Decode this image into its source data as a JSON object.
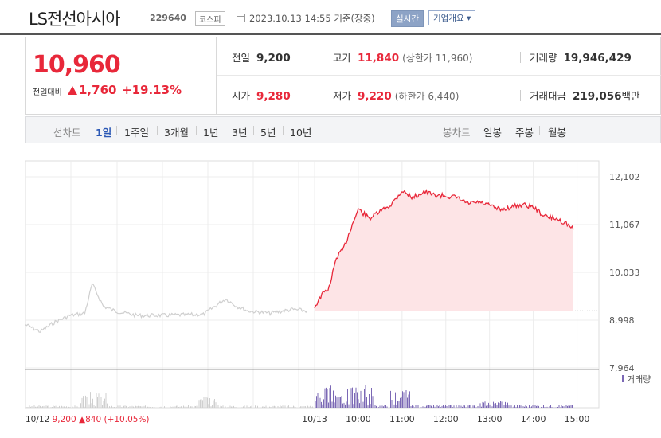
{
  "header": {
    "name": "LS전선아시아",
    "code": "229640",
    "market": "코스피",
    "datetime": "2023.10.13 14:55",
    "basis": "기준(장중)",
    "realtime_btn": "실시간",
    "company_btn": "기업개요 ▾"
  },
  "summary": {
    "price": "10,960",
    "change_label": "전일대비",
    "change": "1,760",
    "change_pct": "+19.13%",
    "prev_close_label": "전일",
    "prev_close": "9,200",
    "high_label": "고가",
    "high": "11,840",
    "upper_limit": "(상한가 11,960)",
    "volume_label": "거래량",
    "volume": "19,946,429",
    "open_label": "시가",
    "open": "9,280",
    "low_label": "저가",
    "low": "9,220",
    "lower_limit": "(하한가 6,440)",
    "value_label": "거래대금",
    "value": "219,056",
    "value_unit": "백만"
  },
  "periods": {
    "line_label": "선차트",
    "items": [
      "1일",
      "1주일",
      "3개월",
      "1년",
      "3년",
      "5년",
      "10년"
    ],
    "active": "1일",
    "candle_label": "봉차트",
    "candle_items": [
      "일봉",
      "주봉",
      "월봉"
    ]
  },
  "colors": {
    "up": "#e8283a",
    "area": "#fde4e6",
    "prev_line": "#cfcfcf",
    "vol_prev": "#cfcfcf",
    "vol_today": "#7b68b5",
    "grid": "#ececec"
  },
  "chart_data": {
    "type": "area",
    "y_ticks": [
      "12,102",
      "11,067",
      "10,033",
      "8,998",
      "7,964"
    ],
    "ylim": [
      7964,
      12102
    ],
    "x_ticks": [
      "10/13",
      "10:00",
      "11:00",
      "12:00",
      "13:00",
      "14:00",
      "15:00"
    ],
    "prev_day_label": "10/12",
    "prev_close": 9200,
    "series": [
      {
        "x": [
          "10/12 09:00",
          "10/12 09:20",
          "10/12 09:40",
          "10/12 10:00",
          "10/12 10:20",
          "10/12 10:30",
          "10/12 10:45",
          "10/12 11:00",
          "10/12 11:30",
          "10/12 12:00",
          "10/12 12:30",
          "10/12 13:00",
          "10/12 13:30",
          "10/12 13:45",
          "10/12 14:00",
          "10/12 14:30",
          "10/12 15:00",
          "10/12 15:20"
        ],
        "values": [
          8900,
          8750,
          8960,
          9100,
          9150,
          9780,
          9300,
          9200,
          9100,
          9100,
          9110,
          9120,
          9460,
          9300,
          9200,
          9150,
          9230,
          9200
        ]
      },
      {
        "x": [
          "10/13 09:00",
          "09:10",
          "09:20",
          "09:30",
          "09:40",
          "09:50",
          "10:00",
          "10:15",
          "10:30",
          "10:45",
          "11:00",
          "11:15",
          "11:30",
          "11:45",
          "12:00",
          "12:15",
          "12:30",
          "12:45",
          "13:00",
          "13:15",
          "13:30",
          "13:45",
          "14:00",
          "14:15",
          "14:30",
          "14:45",
          "14:55"
        ],
        "values": [
          9280,
          9550,
          9700,
          10350,
          10550,
          11000,
          11400,
          11200,
          11350,
          11500,
          11800,
          11650,
          11780,
          11700,
          11690,
          11650,
          11520,
          11550,
          11480,
          11380,
          11450,
          11500,
          11450,
          11250,
          11200,
          11100,
          10960
        ]
      }
    ],
    "volume_label": "거래량"
  },
  "footer": {
    "date": "10/12",
    "close": "9,200",
    "change": "840",
    "change_pct": "(+10.05%)"
  }
}
